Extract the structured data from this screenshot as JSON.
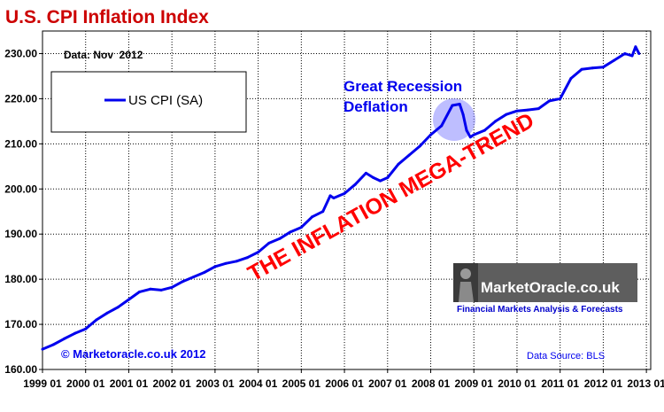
{
  "chart_data": {
    "type": "line",
    "title": "U.S. CPI Inflation Index",
    "subtitle": "Data: Nov  2012",
    "legend": "US CPI (SA)",
    "annotation_recession": [
      "Great Recession",
      "Deflation"
    ],
    "annotation_trend": "THE INFLATION MEGA-TREND",
    "copyright": "© Marketoracle.co.uk 2012",
    "source": "Data Source: BLS",
    "brand_name": "MarketOracle.co.uk",
    "brand_tagline": "Financial Markets Analysis & Forecasts",
    "ylim": [
      160,
      235
    ],
    "yticks": [
      "160.00",
      "170.00",
      "180.00",
      "190.00",
      "200.00",
      "210.00",
      "220.00",
      "230.00"
    ],
    "xlim": [
      1999.0,
      2013.1
    ],
    "xticks": [
      "1999 01",
      "2000 01",
      "2001 01",
      "2002 01",
      "2003 01",
      "2004 01",
      "2005 01",
      "2006 01",
      "2007 01",
      "2008 01",
      "2009 01",
      "2010 01",
      "2011 01",
      "2012 01",
      "2013 01"
    ],
    "series": [
      {
        "name": "US CPI (SA)",
        "color": "#0000ee",
        "x": [
          1999.0,
          1999.25,
          1999.5,
          1999.75,
          2000.0,
          2000.25,
          2000.5,
          2000.75,
          2001.0,
          2001.25,
          2001.5,
          2001.75,
          2002.0,
          2002.25,
          2002.5,
          2002.75,
          2003.0,
          2003.25,
          2003.5,
          2003.75,
          2004.0,
          2004.25,
          2004.5,
          2004.75,
          2005.0,
          2005.25,
          2005.5,
          2005.67,
          2005.75,
          2006.0,
          2006.25,
          2006.5,
          2006.67,
          2006.83,
          2007.0,
          2007.25,
          2007.5,
          2007.75,
          2008.0,
          2008.25,
          2008.5,
          2008.67,
          2008.75,
          2008.83,
          2008.92,
          2009.0,
          2009.25,
          2009.5,
          2009.75,
          2010.0,
          2010.25,
          2010.5,
          2010.75,
          2011.0,
          2011.25,
          2011.5,
          2011.75,
          2012.0,
          2012.25,
          2012.5,
          2012.67,
          2012.75,
          2012.83
        ],
        "values": [
          164.5,
          165.5,
          166.8,
          168.0,
          169.0,
          171.0,
          172.5,
          173.8,
          175.5,
          177.2,
          177.8,
          177.6,
          178.2,
          179.5,
          180.5,
          181.5,
          182.8,
          183.5,
          184.0,
          184.8,
          186.0,
          188.0,
          189.0,
          190.5,
          191.5,
          193.8,
          195.0,
          198.5,
          198.0,
          199.0,
          201.0,
          203.5,
          202.5,
          201.8,
          202.5,
          205.5,
          207.5,
          209.5,
          212.0,
          214.0,
          218.5,
          218.8,
          216.5,
          213.0,
          211.5,
          212.0,
          213.0,
          215.0,
          216.5,
          217.3,
          217.5,
          217.8,
          219.5,
          220.0,
          224.5,
          226.5,
          226.8,
          227.0,
          228.5,
          230.0,
          229.5,
          231.5,
          230.0
        ]
      }
    ]
  }
}
